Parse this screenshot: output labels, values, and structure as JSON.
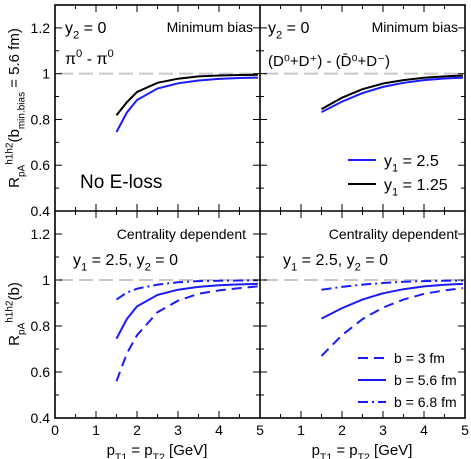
{
  "chart_data": {
    "type": "line",
    "shared_x": {
      "label_main": "p",
      "label_sub1": "T1",
      "label_mid": " = p",
      "label_sub2": "T2",
      "label_unit": " [GeV]",
      "ticks": [
        "0",
        "1",
        "2",
        "3",
        "4",
        "5"
      ],
      "xlim": [
        0,
        5
      ]
    },
    "y_ticks": [
      "0.4",
      "0.6",
      "0.8",
      "1",
      "1.2"
    ],
    "ylim": [
      0.4,
      1.3
    ],
    "ylabel_top": {
      "main": "R",
      "sub": "pA",
      "sup": "h",
      "sup_s1": "1",
      "sup_mid": "h",
      "sup_s2": "2",
      "arg_open": "(b",
      "arg_sub": "min.bias",
      "arg_close": " = 5.6 fm)"
    },
    "ylabel_bottom": {
      "main": "R",
      "sub": "pA",
      "sup": "h",
      "sup_s1": "1",
      "sup_mid": "h",
      "sup_s2": "2",
      "arg": "(b)"
    },
    "reference_line": 1,
    "panels": [
      {
        "id": "top-left",
        "title": "Minimum bias",
        "note1": "y  = 0",
        "note1_prefix": "y",
        "note1_sub": "2",
        "note1_rest": " = 0",
        "note2": "π⁰ - π⁰",
        "note2_a": "π",
        "note2_a_sup": "0",
        "note2_mid": " - π",
        "note2_b_sup": "0",
        "note3": "No E-loss",
        "series": [
          {
            "color": "#1a1aff",
            "dash": "solid",
            "x": [
              1.5,
              1.75,
              2.0,
              2.5,
              3.0,
              3.5,
              4.0,
              4.5,
              4.95
            ],
            "y": [
              0.745,
              0.83,
              0.885,
              0.935,
              0.958,
              0.97,
              0.977,
              0.981,
              0.983
            ]
          },
          {
            "color": "#000000",
            "dash": "solid",
            "x": [
              1.5,
              1.75,
              2.0,
              2.5,
              3.0,
              3.5,
              4.0,
              4.5,
              4.95
            ],
            "y": [
              0.818,
              0.875,
              0.92,
              0.96,
              0.978,
              0.988,
              0.992,
              0.994,
              0.995
            ]
          }
        ]
      },
      {
        "id": "top-right",
        "title": "Minimum bias",
        "note1_prefix": "y",
        "note1_sub": "2",
        "note1_rest": " = 0",
        "note2_text": "(D⁰+D⁺) - (D̄⁰+D⁻)",
        "legend": [
          {
            "label_prefix": "y",
            "label_sub": "1",
            "label_rest": " = 2.5",
            "color": "#1a1aff",
            "dash": "solid"
          },
          {
            "label_prefix": "y",
            "label_sub": "1",
            "label_rest": " = 1.25",
            "color": "#000000",
            "dash": "solid"
          }
        ],
        "series": [
          {
            "color": "#1a1aff",
            "dash": "solid",
            "x": [
              1.5,
              2.0,
              2.5,
              3.0,
              3.5,
              4.0,
              4.5,
              4.95
            ],
            "y": [
              0.832,
              0.878,
              0.915,
              0.942,
              0.96,
              0.972,
              0.979,
              0.983
            ]
          },
          {
            "color": "#000000",
            "dash": "solid",
            "x": [
              1.5,
              2.0,
              2.5,
              3.0,
              3.5,
              4.0,
              4.5,
              4.95
            ],
            "y": [
              0.845,
              0.895,
              0.932,
              0.957,
              0.972,
              0.982,
              0.988,
              0.992
            ]
          }
        ]
      },
      {
        "id": "bottom-left",
        "title": "Centrality dependent",
        "note1_prefix": "y",
        "note1_sub": "1",
        "note1_rest": " = 2.5, y",
        "note1_sub2": "2",
        "note1_rest2": " = 0",
        "series": [
          {
            "color": "#1a1aff",
            "dash": "dash",
            "x": [
              1.5,
              1.75,
              2.0,
              2.5,
              3.0,
              3.5,
              4.0,
              4.5,
              4.95
            ],
            "y": [
              0.56,
              0.68,
              0.76,
              0.86,
              0.91,
              0.94,
              0.955,
              0.965,
              0.972
            ]
          },
          {
            "color": "#1a1aff",
            "dash": "solid",
            "x": [
              1.5,
              1.75,
              2.0,
              2.5,
              3.0,
              3.5,
              4.0,
              4.5,
              4.95
            ],
            "y": [
              0.745,
              0.83,
              0.885,
              0.935,
              0.958,
              0.97,
              0.977,
              0.981,
              0.983
            ]
          },
          {
            "color": "#1a1aff",
            "dash": "dashdot",
            "x": [
              1.5,
              1.75,
              2.0,
              2.5,
              3.0,
              3.5,
              4.0,
              4.5,
              4.95
            ],
            "y": [
              0.915,
              0.945,
              0.962,
              0.98,
              0.99,
              0.995,
              0.997,
              0.998,
              0.999
            ]
          }
        ]
      },
      {
        "id": "bottom-right",
        "title": "Centrality dependent",
        "note1_prefix": "y",
        "note1_sub": "1",
        "note1_rest": " = 2.5, y",
        "note1_sub2": "2",
        "note1_rest2": " = 0",
        "legend": [
          {
            "label": "b = 3 fm",
            "color": "#1a1aff",
            "dash": "dash"
          },
          {
            "label": "b = 5.6 fm",
            "color": "#1a1aff",
            "dash": "solid"
          },
          {
            "label": "b = 6.8 fm",
            "color": "#1a1aff",
            "dash": "dashdot"
          }
        ],
        "series": [
          {
            "color": "#1a1aff",
            "dash": "dash",
            "x": [
              1.5,
              2.0,
              2.5,
              3.0,
              3.5,
              4.0,
              4.5,
              4.95
            ],
            "y": [
              0.67,
              0.76,
              0.83,
              0.88,
              0.915,
              0.94,
              0.955,
              0.965
            ]
          },
          {
            "color": "#1a1aff",
            "dash": "solid",
            "x": [
              1.5,
              2.0,
              2.5,
              3.0,
              3.5,
              4.0,
              4.5,
              4.95
            ],
            "y": [
              0.832,
              0.878,
              0.915,
              0.942,
              0.96,
              0.972,
              0.979,
              0.983
            ]
          },
          {
            "color": "#1a1aff",
            "dash": "dashdot",
            "x": [
              1.5,
              2.0,
              2.5,
              3.0,
              3.5,
              4.0,
              4.5,
              4.95
            ],
            "y": [
              0.958,
              0.97,
              0.98,
              0.987,
              0.992,
              0.995,
              0.997,
              0.998
            ]
          }
        ]
      }
    ]
  }
}
